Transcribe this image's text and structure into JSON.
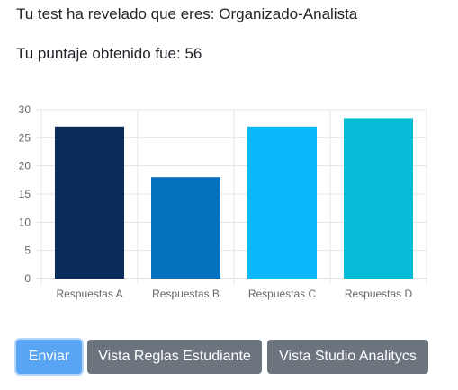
{
  "result": {
    "title": "Tu test ha revelado que eres: Organizado-Analista",
    "score": "Tu puntaje obtenido fue: 56"
  },
  "chart_data": {
    "type": "bar",
    "categories": [
      "Respuestas A",
      "Respuestas B",
      "Respuestas C",
      "Respuestas D"
    ],
    "values": [
      27,
      18,
      27,
      28.5
    ],
    "colors": [
      "#0b2c5a",
      "#0570be",
      "#0ab8fa",
      "#05bbd6"
    ],
    "ylim": [
      0,
      30
    ],
    "yticks": [
      "0",
      "5",
      "10",
      "15",
      "20",
      "25",
      "30"
    ],
    "grid": true,
    "title": "",
    "xlabel": "",
    "ylabel": ""
  },
  "buttons": {
    "submit_label": "Enviar",
    "rules_label": "Vista Reglas Estudiante",
    "studio_label": "Vista Studio Analitycs"
  }
}
